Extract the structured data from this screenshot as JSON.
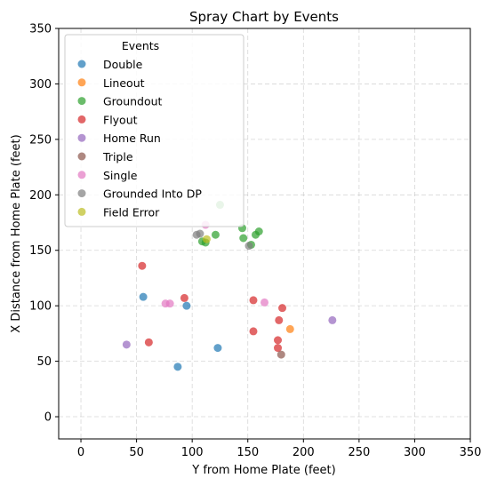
{
  "chart_data": {
    "type": "scatter",
    "title": "Spray Chart by Events",
    "xlabel": "Y from Home Plate (feet)",
    "ylabel": "X Distance from Home Plate (feet)",
    "xlim": [
      -20,
      350
    ],
    "ylim": [
      -20,
      350
    ],
    "xticks": [
      0,
      50,
      100,
      150,
      200,
      250,
      300,
      350
    ],
    "yticks": [
      0,
      50,
      100,
      150,
      200,
      250,
      300,
      350
    ],
    "grid": true,
    "legend": {
      "title": "Events",
      "placement": "top-left"
    },
    "series": [
      {
        "name": "Double",
        "color": "#1f77b4",
        "points": [
          [
            56,
            108
          ],
          [
            95,
            100
          ],
          [
            123,
            62
          ],
          [
            87,
            45
          ]
        ]
      },
      {
        "name": "Lineout",
        "color": "#ff7f0e",
        "points": [
          [
            188,
            79
          ]
        ]
      },
      {
        "name": "Groundout",
        "color": "#2ca02c",
        "points": [
          [
            125,
            191
          ],
          [
            121,
            164
          ],
          [
            109,
            158
          ],
          [
            112,
            157
          ],
          [
            145,
            170
          ],
          [
            146,
            161
          ],
          [
            157,
            164
          ],
          [
            160,
            167
          ],
          [
            153,
            155
          ]
        ]
      },
      {
        "name": "Flyout",
        "color": "#d62728",
        "points": [
          [
            55,
            136
          ],
          [
            93,
            107
          ],
          [
            155,
            105
          ],
          [
            181,
            98
          ],
          [
            178,
            87
          ],
          [
            155,
            77
          ],
          [
            61,
            67
          ],
          [
            177,
            69
          ],
          [
            177,
            62
          ]
        ]
      },
      {
        "name": "Home Run",
        "color": "#9467bd",
        "points": [
          [
            41,
            65
          ],
          [
            226,
            87
          ]
        ]
      },
      {
        "name": "Triple",
        "color": "#8c564b",
        "points": [
          [
            180,
            56
          ]
        ]
      },
      {
        "name": "Single",
        "color": "#e377c2",
        "points": [
          [
            112,
            173
          ],
          [
            76,
            102
          ],
          [
            80,
            102
          ],
          [
            165,
            103
          ]
        ]
      },
      {
        "name": "Grounded Into DP",
        "color": "#7f7f7f",
        "points": [
          [
            104,
            164
          ],
          [
            107,
            165
          ],
          [
            151,
            154
          ]
        ]
      },
      {
        "name": "Field Error",
        "color": "#bcbd22",
        "points": [
          [
            113,
            160
          ]
        ]
      }
    ]
  }
}
